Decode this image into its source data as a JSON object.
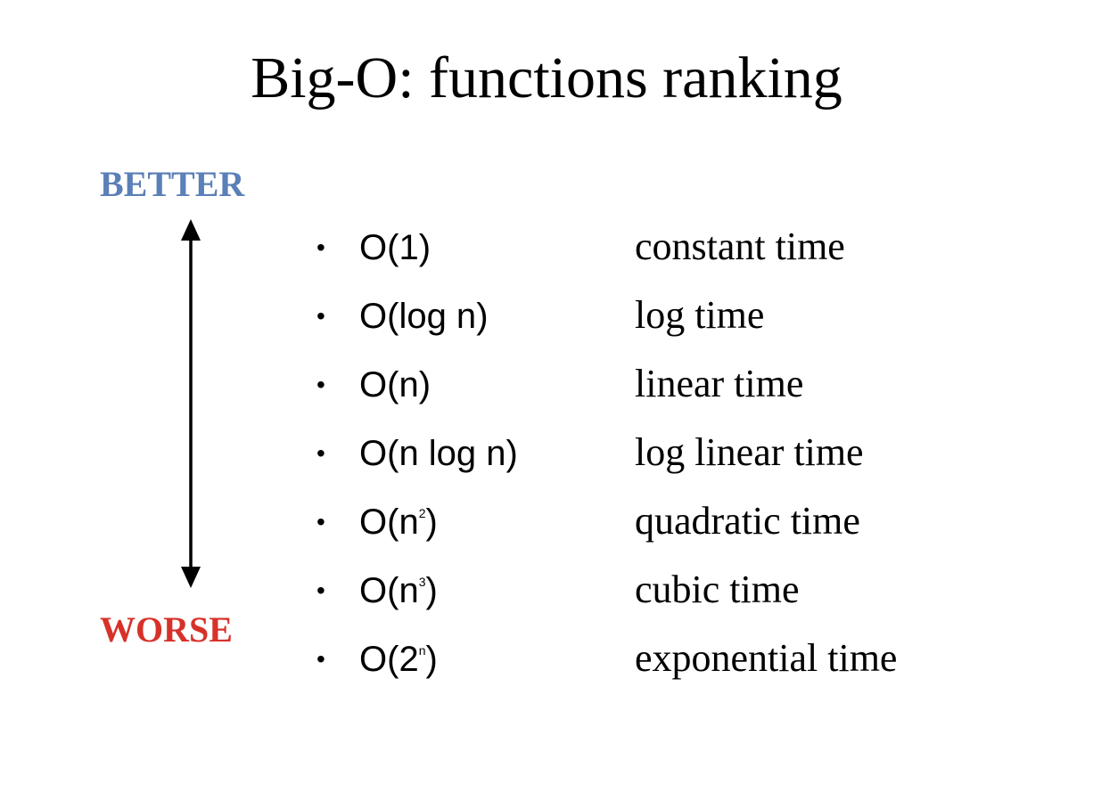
{
  "slide": {
    "title": "Big-O: functions ranking",
    "better_label": "BETTER",
    "worse_label": "WORSE",
    "colors": {
      "better": "#5b7fb7",
      "worse": "#d6322a",
      "text": "#000000"
    },
    "items": [
      {
        "bullet": "•",
        "prefix": "O(",
        "main": "1",
        "sup": "",
        "suffix": ")",
        "description": "constant time"
      },
      {
        "bullet": "•",
        "prefix": "O(",
        "main": "log n",
        "sup": "",
        "suffix": ")",
        "description": "log time"
      },
      {
        "bullet": "•",
        "prefix": "O(",
        "main": "n",
        "sup": "",
        "suffix": ")",
        "description": "linear time"
      },
      {
        "bullet": "•",
        "prefix": "O(",
        "main": "n log n",
        "sup": "",
        "suffix": ")",
        "description": "log linear time"
      },
      {
        "bullet": "•",
        "prefix": "O(",
        "main": "n",
        "sup": "2",
        "suffix": ")",
        "description": "quadratic time"
      },
      {
        "bullet": "•",
        "prefix": "O(",
        "main": "n",
        "sup": "3",
        "suffix": ")",
        "description": "cubic time"
      },
      {
        "bullet": "•",
        "prefix": "O(",
        "main": "2",
        "sup": "n",
        "suffix": ")",
        "description": "exponential time"
      }
    ]
  }
}
